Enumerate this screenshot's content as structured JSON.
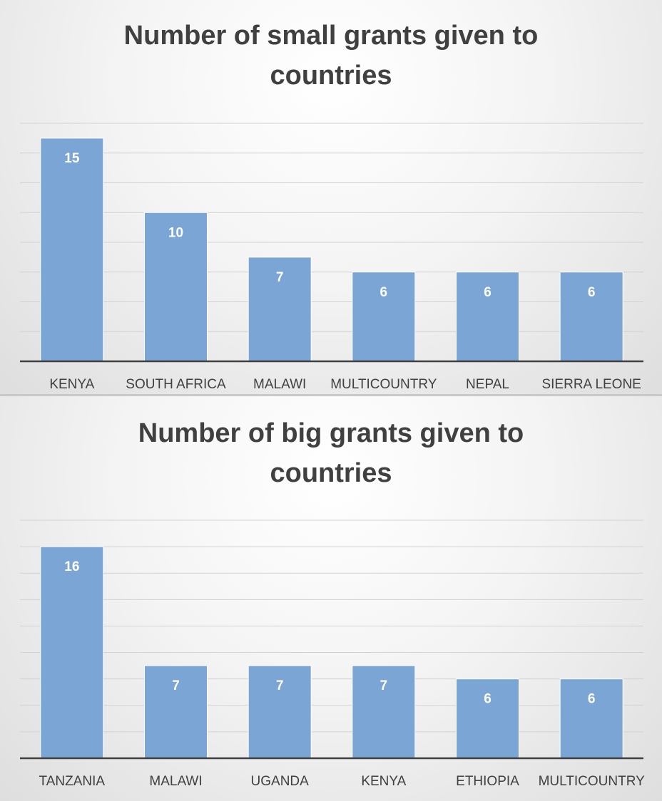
{
  "chart_data": [
    {
      "type": "bar",
      "title": "Number of small grants given to countries",
      "title_lines": [
        "Number of small grants given to",
        "countries"
      ],
      "categories": [
        "KENYA",
        "SOUTH AFRICA",
        "MALAWI",
        "MULTICOUNTRY",
        "NEPAL",
        "SIERRA LEONE"
      ],
      "values": [
        15,
        10,
        7,
        6,
        6,
        6
      ],
      "ylim": [
        0,
        16
      ],
      "grid": true,
      "legend": "none",
      "bar_color": "#7aa5d4"
    },
    {
      "type": "bar",
      "title": "Number of big grants given to countries",
      "title_lines": [
        "Number of big grants given to",
        "countries"
      ],
      "categories": [
        "TANZANIA",
        "MALAWI",
        "UGANDA",
        "KENYA",
        "ETHIOPIA",
        "MULTICOUNTRY"
      ],
      "values": [
        16,
        7,
        7,
        7,
        6,
        6
      ],
      "ylim": [
        0,
        18
      ],
      "grid": true,
      "legend": "none",
      "bar_color": "#7aa5d4"
    }
  ]
}
